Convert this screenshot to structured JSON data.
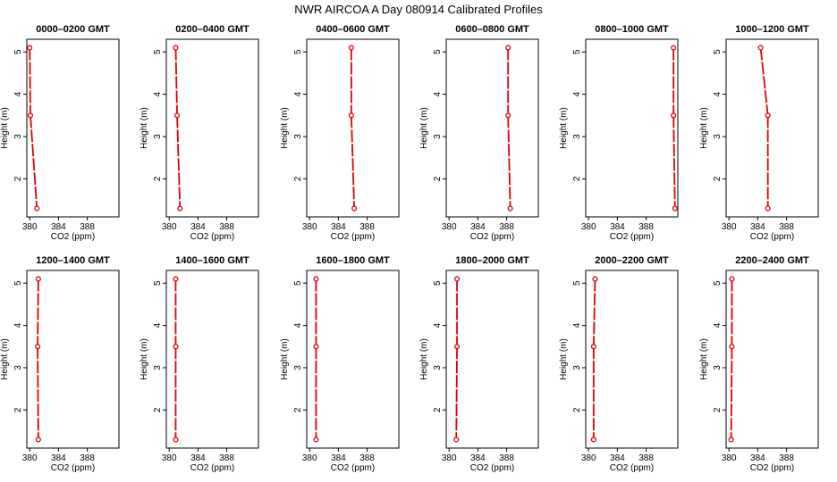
{
  "title": "NWR AIRCOA A  Day 080914  Calibrated Profiles",
  "colors": {
    "profile": "#dd0000",
    "axis": "#000000"
  },
  "chart_data": [
    {
      "type": "line",
      "title": "0000–0200 GMT",
      "xlabel": "CO2 (ppm)",
      "ylabel": "Height (m)",
      "xlim": [
        379.6,
        392.4
      ],
      "ylim": [
        1.1,
        5.3
      ],
      "xticks": [
        "380",
        "384",
        "388"
      ],
      "yticks": [
        "2",
        "3",
        "4",
        "5"
      ],
      "x": [
        380.0,
        380.1,
        381.0
      ],
      "y": [
        5.1,
        3.5,
        1.3
      ]
    },
    {
      "type": "line",
      "title": "0200–0400 GMT",
      "xlabel": "CO2 (ppm)",
      "ylabel": "Height (m)",
      "xlim": [
        379.6,
        392.4
      ],
      "ylim": [
        1.1,
        5.3
      ],
      "xticks": [
        "380",
        "384",
        "388"
      ],
      "yticks": [
        "2",
        "3",
        "4",
        "5"
      ],
      "x": [
        380.9,
        381.1,
        381.5
      ],
      "y": [
        5.1,
        3.5,
        1.3
      ]
    },
    {
      "type": "line",
      "title": "0400–0600 GMT",
      "xlabel": "CO2 (ppm)",
      "ylabel": "Height (m)",
      "xlim": [
        379.6,
        392.4
      ],
      "ylim": [
        1.1,
        5.3
      ],
      "xticks": [
        "380",
        "384",
        "388"
      ],
      "yticks": [
        "2",
        "3",
        "4",
        "5"
      ],
      "x": [
        385.8,
        385.8,
        386.2
      ],
      "y": [
        5.1,
        3.5,
        1.3
      ]
    },
    {
      "type": "line",
      "title": "0600–0800 GMT",
      "xlabel": "CO2 (ppm)",
      "ylabel": "Height (m)",
      "xlim": [
        379.6,
        392.4
      ],
      "ylim": [
        1.1,
        5.3
      ],
      "xticks": [
        "380",
        "384",
        "388"
      ],
      "yticks": [
        "2",
        "3",
        "4",
        "5"
      ],
      "x": [
        388.2,
        388.2,
        388.5
      ],
      "y": [
        5.1,
        3.5,
        1.3
      ]
    },
    {
      "type": "line",
      "title": "0800–1000 GMT",
      "xlabel": "CO2 (ppm)",
      "ylabel": "Height (m)",
      "xlim": [
        379.6,
        392.4
      ],
      "ylim": [
        1.1,
        5.3
      ],
      "xticks": [
        "380",
        "384",
        "388"
      ],
      "yticks": [
        "2",
        "3",
        "4",
        "5"
      ],
      "x": [
        391.8,
        391.8,
        392.0
      ],
      "y": [
        5.1,
        3.5,
        1.3
      ]
    },
    {
      "type": "line",
      "title": "1000–1200 GMT",
      "xlabel": "CO2 (ppm)",
      "ylabel": "Height (m)",
      "xlim": [
        379.6,
        392.4
      ],
      "ylim": [
        1.1,
        5.3
      ],
      "xticks": [
        "380",
        "384",
        "388"
      ],
      "yticks": [
        "2",
        "3",
        "4",
        "5"
      ],
      "x": [
        384.4,
        385.4,
        385.4
      ],
      "y": [
        5.1,
        3.5,
        1.3
      ]
    },
    {
      "type": "line",
      "title": "1200–1400 GMT",
      "xlabel": "CO2 (ppm)",
      "ylabel": "Height (m)",
      "xlim": [
        379.6,
        392.4
      ],
      "ylim": [
        1.1,
        5.3
      ],
      "xticks": [
        "380",
        "384",
        "388"
      ],
      "yticks": [
        "2",
        "3",
        "4",
        "5"
      ],
      "x": [
        381.2,
        381.1,
        381.2
      ],
      "y": [
        5.1,
        3.5,
        1.3
      ]
    },
    {
      "type": "line",
      "title": "1400–1600 GMT",
      "xlabel": "CO2 (ppm)",
      "ylabel": "Height (m)",
      "xlim": [
        379.6,
        392.4
      ],
      "ylim": [
        1.1,
        5.3
      ],
      "xticks": [
        "380",
        "384",
        "388"
      ],
      "yticks": [
        "2",
        "3",
        "4",
        "5"
      ],
      "x": [
        380.9,
        380.9,
        380.9
      ],
      "y": [
        5.1,
        3.5,
        1.3
      ]
    },
    {
      "type": "line",
      "title": "1600–1800 GMT",
      "xlabel": "CO2 (ppm)",
      "ylabel": "Height (m)",
      "xlim": [
        379.6,
        392.4
      ],
      "ylim": [
        1.1,
        5.3
      ],
      "xticks": [
        "380",
        "384",
        "388"
      ],
      "yticks": [
        "2",
        "3",
        "4",
        "5"
      ],
      "x": [
        380.9,
        380.9,
        380.9
      ],
      "y": [
        5.1,
        3.5,
        1.3
      ]
    },
    {
      "type": "line",
      "title": "1800–2000 GMT",
      "xlabel": "CO2 (ppm)",
      "ylabel": "Height (m)",
      "xlim": [
        379.6,
        392.4
      ],
      "ylim": [
        1.1,
        5.3
      ],
      "xticks": [
        "380",
        "384",
        "388"
      ],
      "yticks": [
        "2",
        "3",
        "4",
        "5"
      ],
      "x": [
        381.1,
        381.1,
        381.0
      ],
      "y": [
        5.1,
        3.5,
        1.3
      ]
    },
    {
      "type": "line",
      "title": "2000–2200 GMT",
      "xlabel": "CO2 (ppm)",
      "ylabel": "Height (m)",
      "xlim": [
        379.6,
        392.4
      ],
      "ylim": [
        1.1,
        5.3
      ],
      "xticks": [
        "380",
        "384",
        "388"
      ],
      "yticks": [
        "2",
        "3",
        "4",
        "5"
      ],
      "x": [
        380.9,
        380.7,
        380.7
      ],
      "y": [
        5.1,
        3.5,
        1.3
      ]
    },
    {
      "type": "line",
      "title": "2200–2400 GMT",
      "xlabel": "CO2 (ppm)",
      "ylabel": "Height (m)",
      "xlim": [
        379.6,
        392.4
      ],
      "ylim": [
        1.1,
        5.3
      ],
      "xticks": [
        "380",
        "384",
        "388"
      ],
      "yticks": [
        "2",
        "3",
        "4",
        "5"
      ],
      "x": [
        380.4,
        380.4,
        380.3
      ],
      "y": [
        5.1,
        3.5,
        1.3
      ]
    }
  ]
}
